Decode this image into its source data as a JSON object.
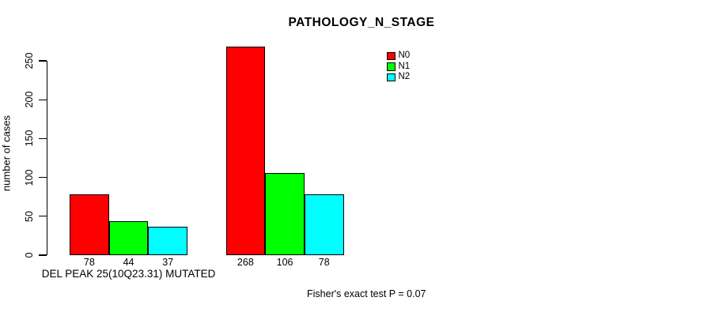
{
  "chart_data": {
    "type": "bar",
    "title": "PATHOLOGY_N_STAGE",
    "xlabel": "",
    "ylabel": "number of cases",
    "ylim": [
      0,
      250
    ],
    "yticks": [
      0,
      50,
      100,
      150,
      200,
      250
    ],
    "grid": false,
    "legend_position": "top-right",
    "categories": [
      "DEL PEAK 25(10Q23.31) MUTATED",
      ""
    ],
    "series": [
      {
        "name": "N0",
        "color": "#ff0000",
        "values": [
          78,
          268
        ]
      },
      {
        "name": "N1",
        "color": "#00ff00",
        "values": [
          44,
          106
        ]
      },
      {
        "name": "N2",
        "color": "#00ffff",
        "values": [
          37,
          78
        ]
      }
    ],
    "value_labels_shown": true,
    "value_labels": [
      [
        78,
        44,
        37
      ],
      [
        268,
        106,
        78
      ]
    ],
    "footnote": "Fisher's exact test P = 0.07",
    "colors": {
      "background": "#ffffff",
      "axis": "#000000",
      "text": "#000000"
    }
  }
}
